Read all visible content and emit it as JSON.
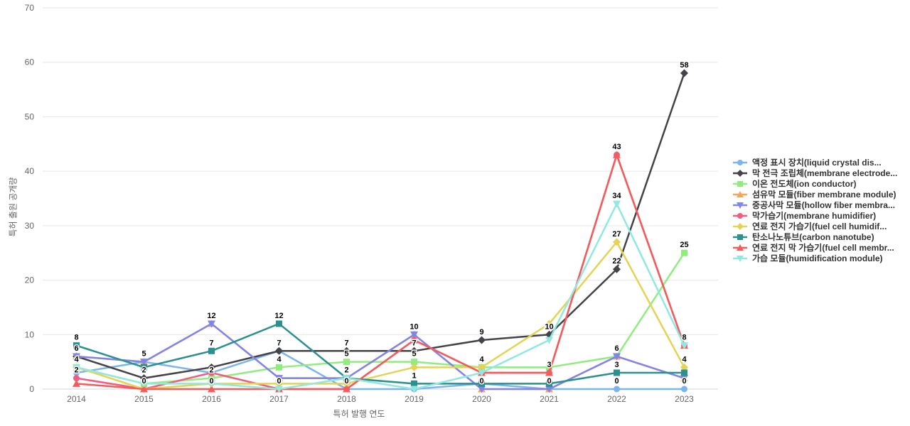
{
  "chart_data": {
    "type": "line",
    "title": "",
    "xlabel": "특허 발행 연도",
    "ylabel": "특허 출원 공개량",
    "x_categories": [
      "2014",
      "2015",
      "2016",
      "2017",
      "2018",
      "2019",
      "2020",
      "2021",
      "2022",
      "2023"
    ],
    "y_ticks": [
      0,
      10,
      20,
      30,
      40,
      50,
      60,
      70
    ],
    "ylim": [
      0,
      70
    ],
    "grid": "horizontal",
    "legend_position": "right",
    "series": [
      {
        "name": "액정 표시 장치(liquid crystal dis...",
        "color": "#7cb5ec",
        "symbol": "circle",
        "values": [
          3,
          5,
          3,
          7,
          0,
          0,
          1,
          0,
          0,
          0
        ],
        "label_points": [
          1,
          7,
          8,
          9
        ]
      },
      {
        "name": "막 전극 조립체(membrane electrode...",
        "color": "#434348",
        "symbol": "diamond",
        "values": [
          6,
          2,
          4,
          7,
          7,
          7,
          9,
          10,
          22,
          58
        ],
        "label_points": [
          0,
          1,
          3,
          4,
          5,
          6,
          7,
          8,
          9
        ]
      },
      {
        "name": "이온 전도체(ion conductor)",
        "color": "#90ed7d",
        "symbol": "square",
        "values": [
          4,
          1,
          2,
          4,
          5,
          5,
          4,
          4,
          6,
          25
        ],
        "label_points": [
          0,
          2,
          3,
          4,
          5,
          6,
          9
        ]
      },
      {
        "name": "섬유막 모듈(fiber membrane module)",
        "color": "#f7a35c",
        "symbol": "triangle",
        "values": [
          6,
          5,
          12,
          2,
          2,
          10,
          0,
          0,
          6,
          2
        ],
        "label_points": []
      },
      {
        "name": "중공사막 모듈(hollow fiber membra...",
        "color": "#8085e9",
        "symbol": "triangle-down",
        "values": [
          6,
          5,
          12,
          2,
          2,
          10,
          0,
          0,
          6,
          2
        ],
        "label_points": [
          2,
          5,
          6,
          8
        ]
      },
      {
        "name": "막가습기(membrane humidifier)",
        "color": "#f15c80",
        "symbol": "circle",
        "values": [
          2,
          0,
          3,
          0,
          0,
          9,
          3,
          3,
          43,
          8
        ],
        "label_points": [
          0,
          7,
          8,
          9
        ]
      },
      {
        "name": "연료 전지 가습기(fuel cell humidif...",
        "color": "#e4d354",
        "symbol": "diamond",
        "values": [
          4,
          0,
          1,
          1,
          1,
          4,
          4,
          12,
          27,
          4
        ],
        "label_points": [
          8,
          9
        ]
      },
      {
        "name": "탄소나노튜브(carbon nanotube)",
        "color": "#2b908f",
        "symbol": "square",
        "values": [
          8,
          4,
          7,
          12,
          2,
          1,
          1,
          1,
          3,
          3
        ],
        "label_points": [
          0,
          2,
          3,
          4,
          5,
          8
        ]
      },
      {
        "name": "연료 전지 막 가습기(fuel cell membr...",
        "color": "#f45b5b",
        "symbol": "triangle",
        "values": [
          1,
          0,
          0,
          0,
          0,
          9,
          3,
          3,
          43,
          8
        ],
        "label_points": [
          1,
          2,
          3,
          4
        ]
      },
      {
        "name": "가습 모듈(humidification module)",
        "color": "#91e8e1",
        "symbol": "triangle-down",
        "values": [
          4,
          1,
          1,
          0,
          2,
          0,
          3,
          9,
          34,
          8
        ],
        "label_points": [
          8
        ]
      }
    ]
  },
  "colors": {
    "grid_line": "#e6e6e6",
    "axis_line": "#ccd6eb",
    "tick_text": "#666666",
    "legend_text": "#333333",
    "point_label_text": "#000000",
    "background": "#ffffff"
  }
}
